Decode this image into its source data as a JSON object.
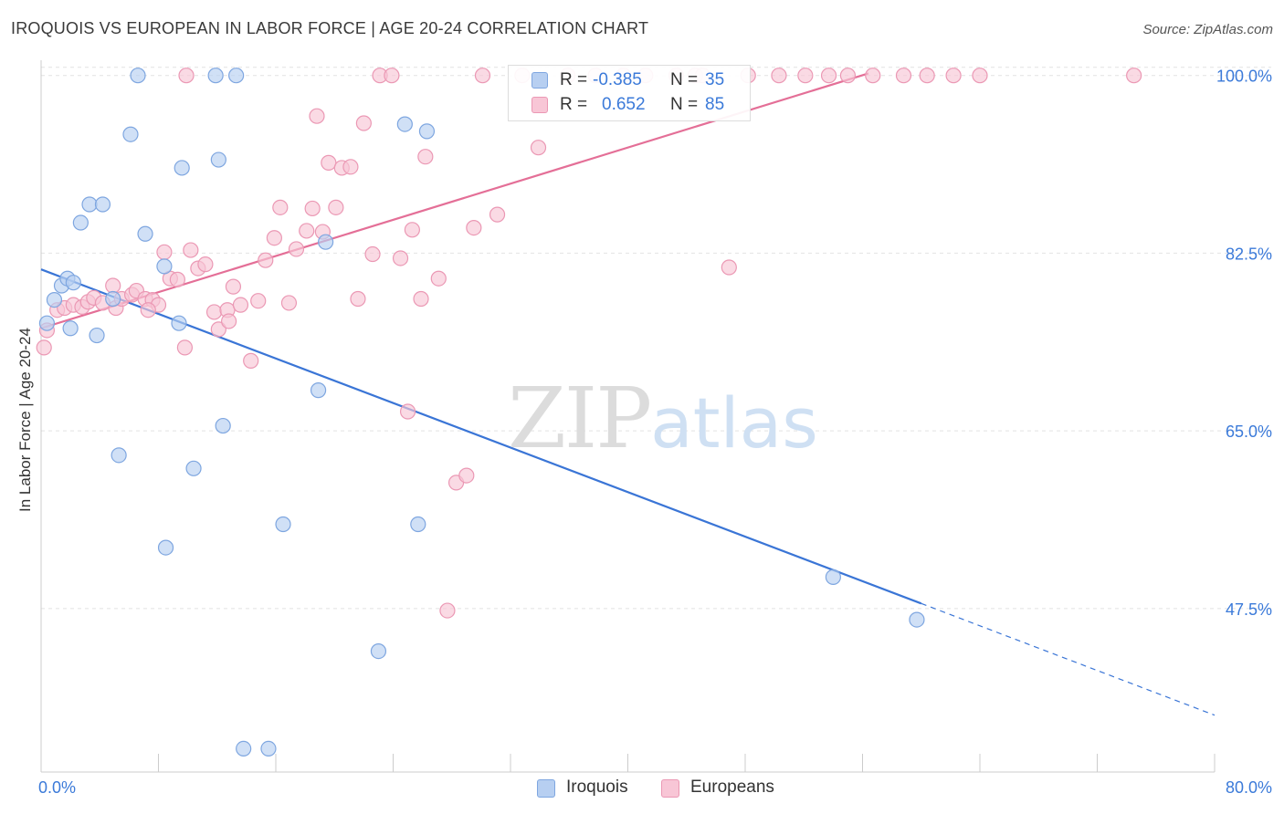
{
  "header": {
    "title": "IROQUOIS VS EUROPEAN IN LABOR FORCE | AGE 20-24 CORRELATION CHART",
    "source": "Source: ZipAtlas.com"
  },
  "watermark": {
    "zip": "ZIP",
    "atlas": "atlas"
  },
  "stats": {
    "r_label": "R =",
    "n_label": "N =",
    "rows": [
      {
        "r": "-0.385",
        "n": "35"
      },
      {
        "r": "0.652",
        "n": "85"
      }
    ]
  },
  "legend": {
    "items": [
      "Iroquois",
      "Europeans"
    ]
  },
  "colors": {
    "iroquois_fill": "#b7cff1",
    "iroquois_stroke": "#7ea6e0",
    "iroquois_line": "#3a75d6",
    "europeans_fill": "#f8c6d6",
    "europeans_stroke": "#eb98b4",
    "europeans_line": "#e46f97",
    "tick_label": "#3b7ad9",
    "grid": "#e2e2e2"
  },
  "chart_data": {
    "type": "scatter",
    "title": "IROQUOIS VS EUROPEAN IN LABOR FORCE | AGE 20-24 CORRELATION CHART",
    "xlabel": "",
    "ylabel": "In Labor Force | Age 20-24",
    "xlim": [
      0,
      80
    ],
    "ylim": [
      31.4,
      101.5
    ],
    "x_tick_labels": [
      "0.0%",
      "80.0%"
    ],
    "y_ticks": [
      100.0,
      82.5,
      65.0,
      47.5
    ],
    "y_tick_labels": [
      "100.0%",
      "82.5%",
      "65.0%",
      "47.5%"
    ],
    "grid": "horizontal dashed",
    "legend_position": "bottom-center",
    "series": [
      {
        "name": "Iroquois",
        "points": [
          [
            0.4,
            75.6
          ],
          [
            0.9,
            77.9
          ],
          [
            1.4,
            79.3
          ],
          [
            1.8,
            80.0
          ],
          [
            2.0,
            75.1
          ],
          [
            2.2,
            79.6
          ],
          [
            2.7,
            85.5
          ],
          [
            3.3,
            87.3
          ],
          [
            3.8,
            74.4
          ],
          [
            4.2,
            87.3
          ],
          [
            4.9,
            78.0
          ],
          [
            5.3,
            62.6
          ],
          [
            6.1,
            94.2
          ],
          [
            6.6,
            100.0
          ],
          [
            7.1,
            84.4
          ],
          [
            8.4,
            81.2
          ],
          [
            9.4,
            75.6
          ],
          [
            9.6,
            90.9
          ],
          [
            10.4,
            61.3
          ],
          [
            8.5,
            53.5
          ],
          [
            11.9,
            100.0
          ],
          [
            12.1,
            91.7
          ],
          [
            12.4,
            65.5
          ],
          [
            13.3,
            100.0
          ],
          [
            13.8,
            33.7
          ],
          [
            15.5,
            33.7
          ],
          [
            16.5,
            55.8
          ],
          [
            18.9,
            69.0
          ],
          [
            19.4,
            83.6
          ],
          [
            23.0,
            43.3
          ],
          [
            24.8,
            95.2
          ],
          [
            25.7,
            55.8
          ],
          [
            26.3,
            94.5
          ],
          [
            54.0,
            50.6
          ],
          [
            59.7,
            46.4
          ]
        ]
      },
      {
        "name": "Europeans",
        "points": [
          [
            0.2,
            73.2
          ],
          [
            0.4,
            74.9
          ],
          [
            1.1,
            76.9
          ],
          [
            1.6,
            77.1
          ],
          [
            2.2,
            77.4
          ],
          [
            2.8,
            77.2
          ],
          [
            3.2,
            77.7
          ],
          [
            3.6,
            78.1
          ],
          [
            4.2,
            77.6
          ],
          [
            4.9,
            79.3
          ],
          [
            5.1,
            77.1
          ],
          [
            5.5,
            78.0
          ],
          [
            6.2,
            78.4
          ],
          [
            6.5,
            78.8
          ],
          [
            7.1,
            78.0
          ],
          [
            7.6,
            77.9
          ],
          [
            8.0,
            77.4
          ],
          [
            8.4,
            82.6
          ],
          [
            8.8,
            80.0
          ],
          [
            9.3,
            79.9
          ],
          [
            9.8,
            73.2
          ],
          [
            10.2,
            82.8
          ],
          [
            10.7,
            81.0
          ],
          [
            11.2,
            81.4
          ],
          [
            11.8,
            76.7
          ],
          [
            12.1,
            75.0
          ],
          [
            12.7,
            76.9
          ],
          [
            13.1,
            79.2
          ],
          [
            13.6,
            77.4
          ],
          [
            14.3,
            71.9
          ],
          [
            14.8,
            77.8
          ],
          [
            15.3,
            81.8
          ],
          [
            15.9,
            84.0
          ],
          [
            16.3,
            87.0
          ],
          [
            16.9,
            77.6
          ],
          [
            17.4,
            82.9
          ],
          [
            18.1,
            84.7
          ],
          [
            18.5,
            86.9
          ],
          [
            18.8,
            96.0
          ],
          [
            19.2,
            84.6
          ],
          [
            19.6,
            91.4
          ],
          [
            20.1,
            87.0
          ],
          [
            20.5,
            90.9
          ],
          [
            21.1,
            91.0
          ],
          [
            21.6,
            78.0
          ],
          [
            22.0,
            95.3
          ],
          [
            22.6,
            82.4
          ],
          [
            23.1,
            100.0
          ],
          [
            23.9,
            100.0
          ],
          [
            24.5,
            82.0
          ],
          [
            25.0,
            66.9
          ],
          [
            25.3,
            84.8
          ],
          [
            25.9,
            78.0
          ],
          [
            26.2,
            92.0
          ],
          [
            27.1,
            80.0
          ],
          [
            27.7,
            47.3
          ],
          [
            28.3,
            59.9
          ],
          [
            29.0,
            60.6
          ],
          [
            29.5,
            85.0
          ],
          [
            30.1,
            100.0
          ],
          [
            31.1,
            86.3
          ],
          [
            32.8,
            100.0
          ],
          [
            33.9,
            92.9
          ],
          [
            35.9,
            100.0
          ],
          [
            37.8,
            100.0
          ],
          [
            39.7,
            100.0
          ],
          [
            41.2,
            100.0
          ],
          [
            43.3,
            100.0
          ],
          [
            44.6,
            100.0
          ],
          [
            45.1,
            100.0
          ],
          [
            46.9,
            81.1
          ],
          [
            48.2,
            100.0
          ],
          [
            50.3,
            100.0
          ],
          [
            52.1,
            100.0
          ],
          [
            53.7,
            100.0
          ],
          [
            55.0,
            100.0
          ],
          [
            56.7,
            100.0
          ],
          [
            58.8,
            100.0
          ],
          [
            60.4,
            100.0
          ],
          [
            62.2,
            100.0
          ],
          [
            64.0,
            100.0
          ],
          [
            74.5,
            100.0
          ],
          [
            9.9,
            100.0
          ],
          [
            7.3,
            76.9
          ],
          [
            12.8,
            75.8
          ]
        ]
      }
    ],
    "trend_lines": [
      {
        "series": "Iroquois",
        "solid": [
          [
            0,
            80.9
          ],
          [
            60.0,
            48.0
          ]
        ],
        "dashed": [
          [
            60.0,
            48.0
          ],
          [
            80.0,
            37.0
          ]
        ]
      },
      {
        "series": "Europeans",
        "solid": [
          [
            0,
            75.1
          ],
          [
            56.4,
            100.2
          ]
        ]
      }
    ]
  }
}
